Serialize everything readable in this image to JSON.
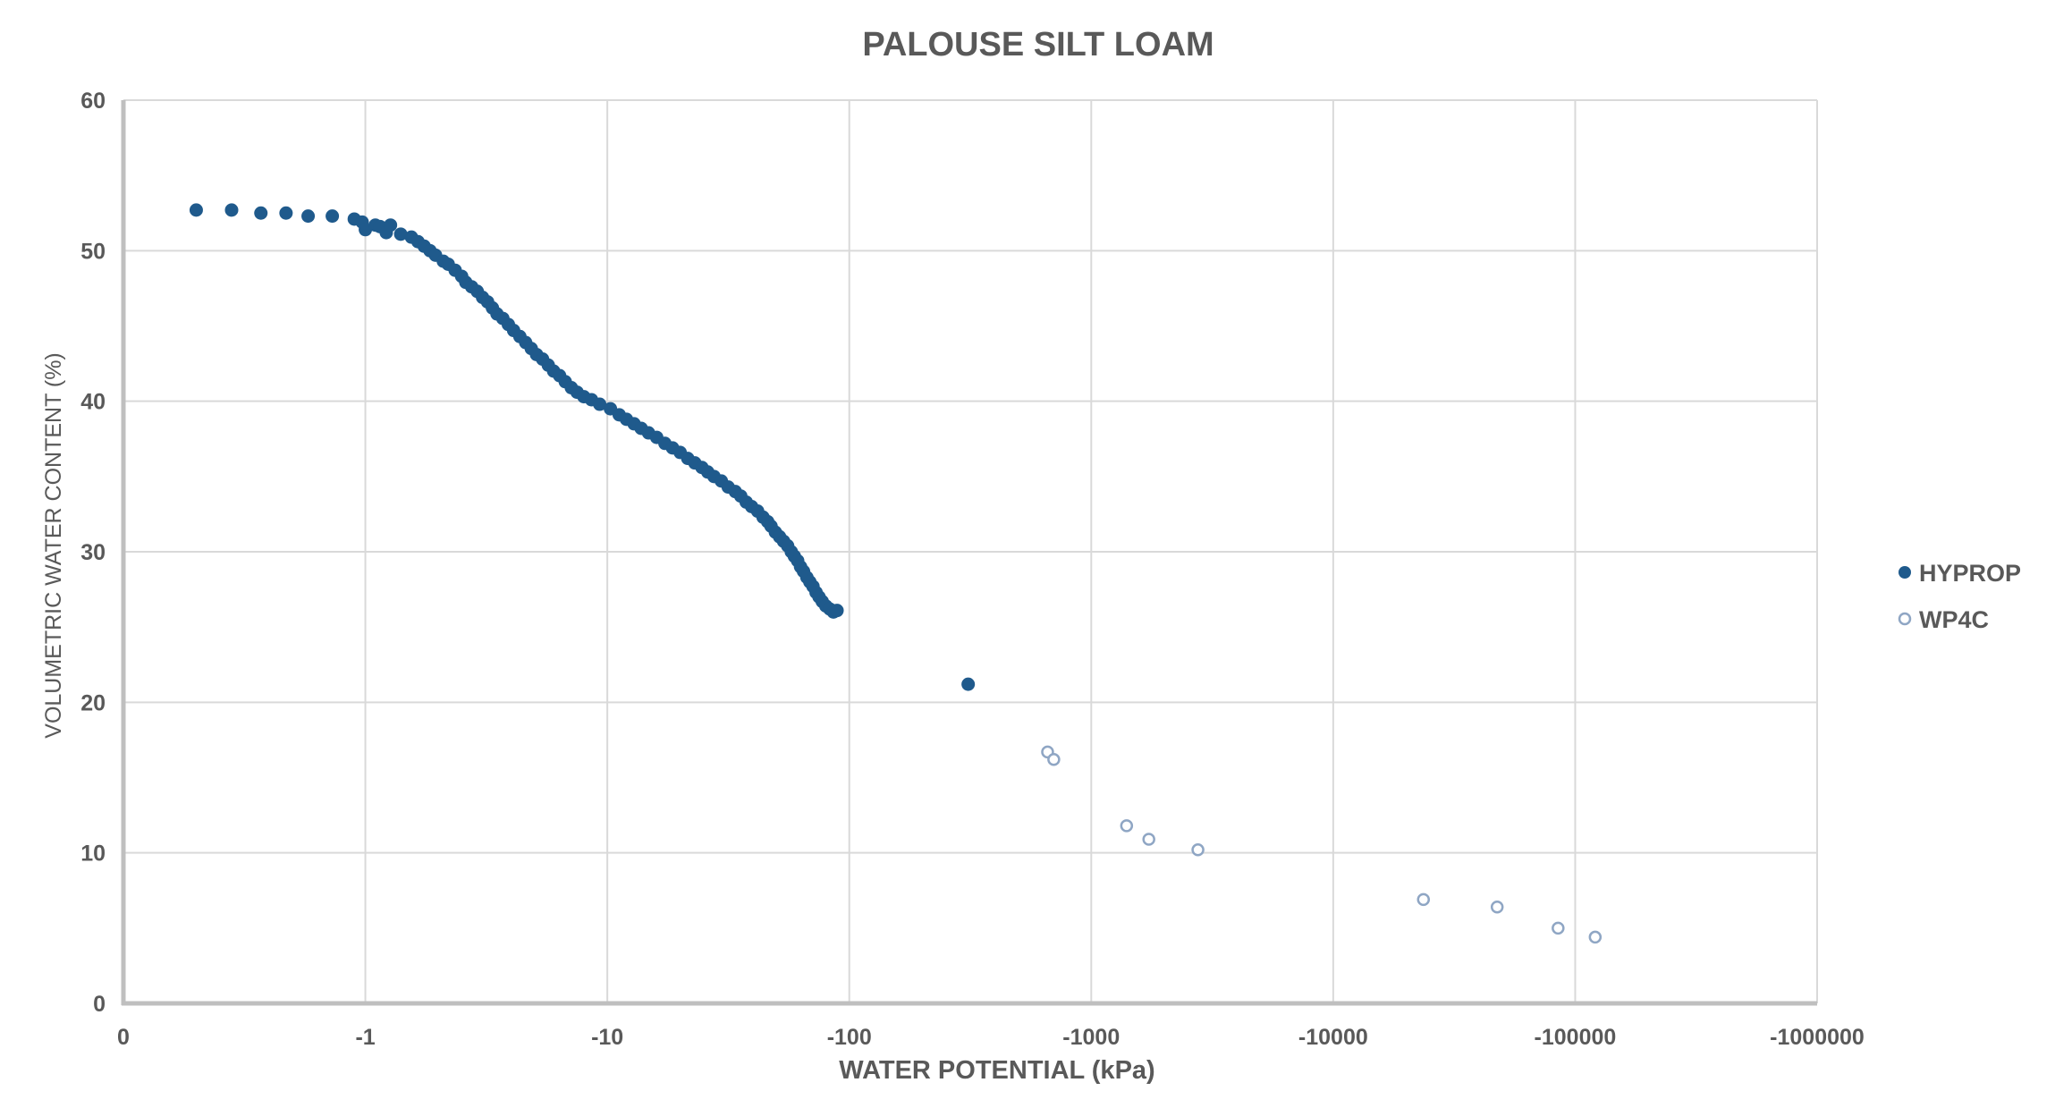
{
  "colors": {
    "hyprop": "#1f5a8c",
    "wp4c": "#8fa6c4",
    "grid": "#d9d9d9",
    "axis": "#bfbfbf",
    "text": "#595959"
  },
  "chart_data": {
    "type": "scatter",
    "title": "PALOUSE SILT LOAM",
    "xlabel": "WATER POTENTIAL (kPa)",
    "ylabel": "VOLUMETRIC WATER CONTENT (%)",
    "x_scale": "log",
    "x_tick_labels": [
      "0",
      "-1",
      "-10",
      "-100",
      "-1000",
      "-10000",
      "-100000",
      "-1000000"
    ],
    "x_tick_values": [
      -0.1,
      -1,
      -10,
      -100,
      -1000,
      -10000,
      -100000,
      -1000000
    ],
    "xlim": [
      -0.1,
      -1000000
    ],
    "y_tick_labels": [
      "0",
      "10",
      "20",
      "30",
      "40",
      "50",
      "60"
    ],
    "ylim": [
      0,
      60
    ],
    "grid": true,
    "legend_position": "right",
    "series": [
      {
        "name": "HYPROP",
        "marker": "filled-circle",
        "color": "#1f5a8c",
        "points": [
          [
            -0.2,
            52.7
          ],
          [
            -0.28,
            52.7
          ],
          [
            -0.37,
            52.5
          ],
          [
            -0.47,
            52.5
          ],
          [
            -0.58,
            52.3
          ],
          [
            -0.73,
            52.3
          ],
          [
            -0.9,
            52.1
          ],
          [
            -0.97,
            51.9
          ],
          [
            -1.0,
            51.4
          ],
          [
            -1.1,
            51.7
          ],
          [
            -1.15,
            51.6
          ],
          [
            -1.22,
            51.2
          ],
          [
            -1.27,
            51.7
          ],
          [
            -1.4,
            51.1
          ],
          [
            -1.55,
            50.9
          ],
          [
            -1.65,
            50.6
          ],
          [
            -1.75,
            50.3
          ],
          [
            -1.85,
            50.0
          ],
          [
            -1.95,
            49.7
          ],
          [
            -2.1,
            49.3
          ],
          [
            -2.2,
            49.1
          ],
          [
            -2.35,
            48.7
          ],
          [
            -2.5,
            48.3
          ],
          [
            -2.6,
            47.9
          ],
          [
            -2.75,
            47.6
          ],
          [
            -2.9,
            47.3
          ],
          [
            -3.05,
            46.9
          ],
          [
            -3.2,
            46.6
          ],
          [
            -3.35,
            46.2
          ],
          [
            -3.5,
            45.8
          ],
          [
            -3.7,
            45.5
          ],
          [
            -3.9,
            45.1
          ],
          [
            -4.1,
            44.7
          ],
          [
            -4.35,
            44.3
          ],
          [
            -4.6,
            43.9
          ],
          [
            -4.85,
            43.5
          ],
          [
            -5.1,
            43.1
          ],
          [
            -5.4,
            42.8
          ],
          [
            -5.7,
            42.4
          ],
          [
            -6.0,
            42.0
          ],
          [
            -6.35,
            41.7
          ],
          [
            -6.7,
            41.3
          ],
          [
            -7.1,
            40.9
          ],
          [
            -7.5,
            40.6
          ],
          [
            -8.0,
            40.3
          ],
          [
            -8.6,
            40.1
          ],
          [
            -9.3,
            39.8
          ],
          [
            -10.3,
            39.5
          ],
          [
            -11.2,
            39.1
          ],
          [
            -12.0,
            38.8
          ],
          [
            -12.9,
            38.5
          ],
          [
            -13.8,
            38.2
          ],
          [
            -14.8,
            37.9
          ],
          [
            -16.0,
            37.6
          ],
          [
            -17.3,
            37.2
          ],
          [
            -18.6,
            36.9
          ],
          [
            -20.0,
            36.6
          ],
          [
            -21.5,
            36.2
          ],
          [
            -23.0,
            35.9
          ],
          [
            -24.6,
            35.6
          ],
          [
            -26.0,
            35.3
          ],
          [
            -27.6,
            35.0
          ],
          [
            -29.6,
            34.7
          ],
          [
            -31.6,
            34.3
          ],
          [
            -33.8,
            34.0
          ],
          [
            -35.6,
            33.7
          ],
          [
            -37.5,
            33.3
          ],
          [
            -39.5,
            33.0
          ],
          [
            -41.8,
            32.7
          ],
          [
            -44.0,
            32.3
          ],
          [
            -46.0,
            32.0
          ],
          [
            -47.5,
            31.7
          ],
          [
            -49.5,
            31.3
          ],
          [
            -51.5,
            31.0
          ],
          [
            -53.5,
            30.7
          ],
          [
            -55.6,
            30.4
          ],
          [
            -57.6,
            30.0
          ],
          [
            -59.3,
            29.7
          ],
          [
            -61.2,
            29.4
          ],
          [
            -62.9,
            29.0
          ],
          [
            -64.7,
            28.7
          ],
          [
            -66.8,
            28.3
          ],
          [
            -68.7,
            28.0
          ],
          [
            -70.8,
            27.7
          ],
          [
            -72.9,
            27.3
          ],
          [
            -75.0,
            27.0
          ],
          [
            -77.3,
            26.7
          ],
          [
            -80.0,
            26.4
          ],
          [
            -83.0,
            26.2
          ],
          [
            -86.0,
            26.0
          ],
          [
            -89.0,
            26.1
          ],
          [
            -310.0,
            21.2
          ]
        ]
      },
      {
        "name": "WP4C",
        "marker": "open-circle",
        "color": "#8fa6c4",
        "points": [
          [
            -660.0,
            16.7
          ],
          [
            -700.0,
            16.2
          ],
          [
            -1400.0,
            11.8
          ],
          [
            -1730.0,
            10.9
          ],
          [
            -2760.0,
            10.2
          ],
          [
            -23600.0,
            6.9
          ],
          [
            -47600.0,
            6.4
          ],
          [
            -85000.0,
            5.0
          ],
          [
            -121000.0,
            4.4
          ]
        ]
      }
    ]
  }
}
